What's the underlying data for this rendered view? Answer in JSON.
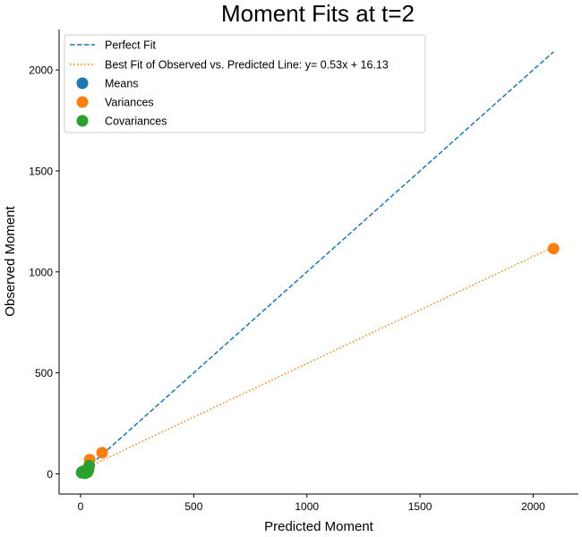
{
  "chart_data": {
    "type": "scatter",
    "title": "Moment Fits at t=2",
    "xlabel": "Predicted Moment",
    "ylabel": "Observed Moment",
    "xlim": [
      -95,
      2200
    ],
    "ylim": [
      -100,
      2200
    ],
    "xticks": [
      0,
      500,
      1000,
      1500,
      2000
    ],
    "yticks": [
      0,
      500,
      1000,
      1500,
      2000
    ],
    "grid": false,
    "legend_position": "top-left",
    "lines": [
      {
        "name": "Perfect Fit",
        "style": "dashed",
        "color": "#1f77b4",
        "x": [
          0,
          2090
        ],
        "y": [
          0,
          2090
        ]
      },
      {
        "name": "Best Fit of Observed vs. Predicted Line: y= 0.53x + 16.13",
        "style": "dotted",
        "color": "#ff7f0e",
        "x": [
          0,
          2090
        ],
        "y": [
          16.13,
          1123.83
        ]
      }
    ],
    "series": [
      {
        "name": "Means",
        "color": "#1f77b4",
        "x": [
          5,
          10
        ],
        "y": [
          8,
          12
        ]
      },
      {
        "name": "Variances",
        "color": "#ff7f0e",
        "x": [
          2090,
          95,
          40,
          25
        ],
        "y": [
          1115,
          105,
          70,
          20
        ]
      },
      {
        "name": "Covariances",
        "color": "#2ca02c",
        "x": [
          5,
          10,
          15,
          20,
          30,
          35,
          38
        ],
        "y": [
          5,
          10,
          12,
          3,
          8,
          20,
          40
        ]
      }
    ]
  }
}
